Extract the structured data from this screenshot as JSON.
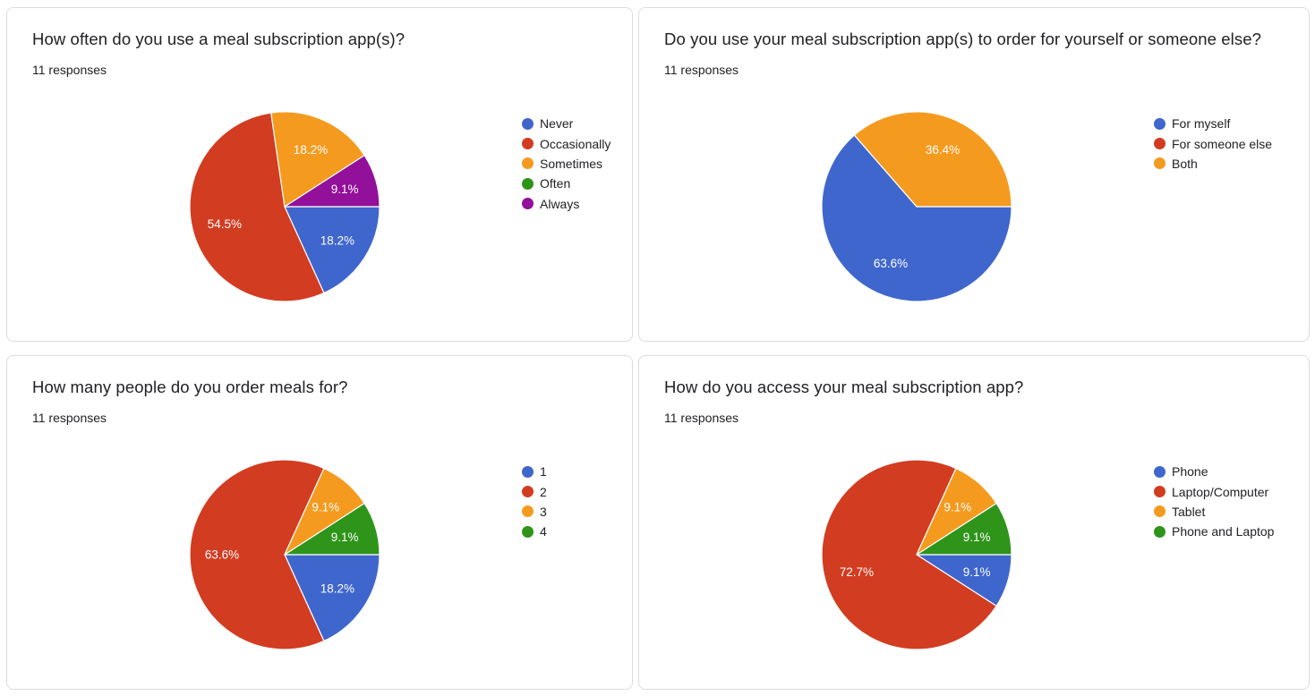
{
  "charts": [
    {
      "title": "How often do you use a meal subscription app(s)?",
      "subtitle": "11 responses"
    },
    {
      "title": "Do you use your meal subscription app(s) to order for yourself or someone else?",
      "subtitle": "11 responses"
    },
    {
      "title": "How many people do you order meals for?",
      "subtitle": "11 responses"
    },
    {
      "title": "How do you access your meal subscription app?",
      "subtitle": "11 responses"
    }
  ],
  "chart_data": [
    {
      "type": "pie",
      "title": "How often do you use a meal subscription app(s)?",
      "categories": [
        "Never",
        "Occasionally",
        "Sometimes",
        "Often",
        "Always"
      ],
      "values": [
        18.2,
        54.5,
        18.2,
        0,
        9.1
      ],
      "labels": [
        "18.2%",
        "54.5%",
        "18.2%",
        "",
        "9.1%"
      ],
      "colors": [
        "#3f66cc",
        "#d23c21",
        "#f49b1f",
        "#2e941a",
        "#92109a"
      ],
      "legend_position": "right"
    },
    {
      "type": "pie",
      "title": "Do you use your meal subscription app(s) to order for yourself or someone else?",
      "categories": [
        "For myself",
        "For someone else",
        "Both"
      ],
      "values": [
        63.6,
        0,
        36.4
      ],
      "labels": [
        "63.6%",
        "",
        "36.4%"
      ],
      "colors": [
        "#3f66cc",
        "#d23c21",
        "#f49b1f"
      ],
      "legend_position": "right"
    },
    {
      "type": "pie",
      "title": "How many people do you order meals for?",
      "categories": [
        "1",
        "2",
        "3",
        "4"
      ],
      "values": [
        18.2,
        63.6,
        9.1,
        9.1
      ],
      "labels": [
        "18.2%",
        "63.6%",
        "9.1%",
        "9.1%"
      ],
      "colors": [
        "#3f66cc",
        "#d23c21",
        "#f49b1f",
        "#2e941a"
      ],
      "legend_position": "right"
    },
    {
      "type": "pie",
      "title": "How do you access your meal subscription app?",
      "categories": [
        "Phone",
        "Laptop/Computer",
        "Tablet",
        "Phone and Laptop"
      ],
      "values": [
        9.1,
        72.7,
        9.1,
        9.1
      ],
      "labels": [
        "9.1%",
        "72.7%",
        "9.1%",
        "9.1%"
      ],
      "colors": [
        "#3f66cc",
        "#d23c21",
        "#f49b1f",
        "#2e941a"
      ],
      "legend_position": "right"
    }
  ]
}
